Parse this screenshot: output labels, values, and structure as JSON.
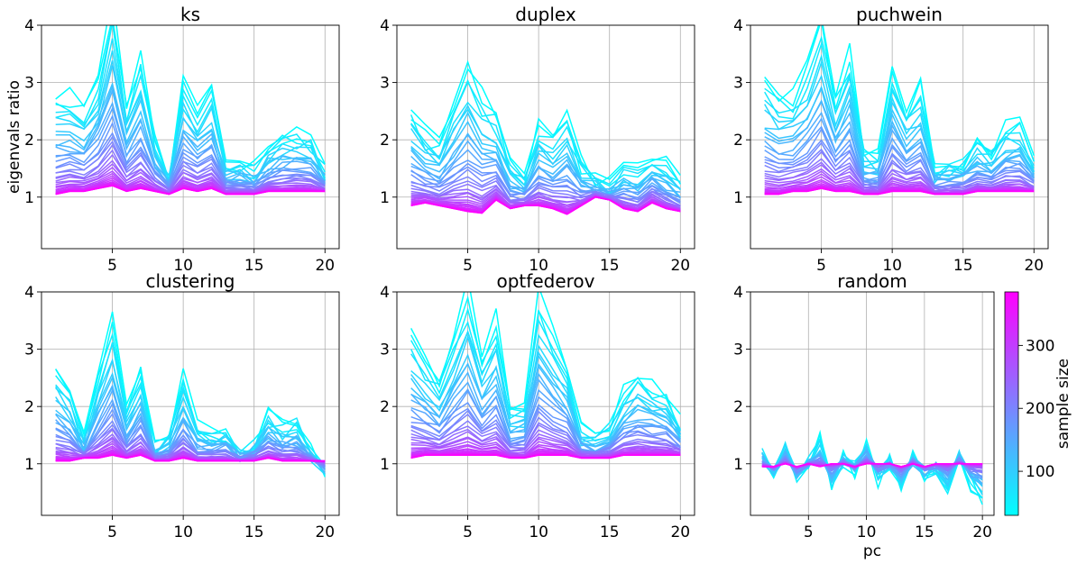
{
  "figure": {
    "colorbar": {
      "label": "sample size",
      "ticks": [
        "100",
        "200",
        "300"
      ],
      "range": [
        30,
        385
      ],
      "colormap": "cool (cyan to magenta)"
    },
    "colors": {
      "low": "#00ffff",
      "high": "#ff00ff",
      "grid": "#b0b0b0"
    }
  },
  "chart_data": [
    {
      "type": "line",
      "title": "ks",
      "xlabel": "",
      "ylabel": "eigenvals ratio",
      "xlim": [
        0,
        21
      ],
      "ylim": [
        0.1,
        4
      ],
      "xticks": [
        "5",
        "10",
        "15",
        "20"
      ],
      "yticks": [
        "1",
        "2",
        "3",
        "4"
      ],
      "grid": true,
      "x": [
        1,
        2,
        3,
        4,
        5,
        6,
        7,
        8,
        9,
        10,
        11,
        12,
        13,
        14,
        15,
        16,
        17,
        18,
        19,
        20
      ],
      "series_high_variance_small_sample": [
        2.8,
        2.8,
        2.6,
        3.2,
        4.5,
        2.6,
        3.5,
        2.1,
        1.4,
        3.1,
        2.6,
        3.0,
        1.6,
        1.6,
        1.5,
        1.9,
        2.1,
        2.2,
        2.1,
        1.5
      ],
      "series_converged_large_sample": [
        1.05,
        1.1,
        1.1,
        1.15,
        1.2,
        1.1,
        1.15,
        1.1,
        1.05,
        1.15,
        1.1,
        1.15,
        1.05,
        1.05,
        1.05,
        1.1,
        1.1,
        1.1,
        1.1,
        1.1
      ],
      "series_count_approx": 36
    },
    {
      "type": "line",
      "title": "duplex",
      "xlabel": "",
      "ylabel": "",
      "xlim": [
        0,
        21
      ],
      "ylim": [
        0.1,
        4
      ],
      "xticks": [
        "5",
        "10",
        "15",
        "20"
      ],
      "yticks": [
        "1",
        "2",
        "3",
        "4"
      ],
      "grid": true,
      "x": [
        1,
        2,
        3,
        4,
        5,
        6,
        7,
        8,
        9,
        10,
        11,
        12,
        13,
        14,
        15,
        16,
        17,
        18,
        19,
        20
      ],
      "series_high_variance_small_sample": [
        2.6,
        2.1,
        2.0,
        2.7,
        3.4,
        2.8,
        2.5,
        1.6,
        1.4,
        2.3,
        2.1,
        2.5,
        1.6,
        1.3,
        1.2,
        1.6,
        1.5,
        1.8,
        1.6,
        1.3
      ],
      "series_converged_large_sample": [
        0.85,
        0.9,
        0.85,
        0.8,
        0.75,
        0.72,
        0.95,
        0.8,
        0.85,
        0.85,
        0.8,
        0.7,
        0.85,
        1.0,
        0.95,
        0.8,
        0.75,
        0.9,
        0.8,
        0.75
      ],
      "series_count_approx": 36
    },
    {
      "type": "line",
      "title": "puchwein",
      "xlabel": "",
      "ylabel": "",
      "xlim": [
        0,
        21
      ],
      "ylim": [
        0.1,
        4
      ],
      "xticks": [
        "5",
        "10",
        "15",
        "20"
      ],
      "yticks": [
        "1",
        "2",
        "3",
        "4"
      ],
      "grid": true,
      "x": [
        1,
        2,
        3,
        4,
        5,
        6,
        7,
        8,
        9,
        10,
        11,
        12,
        13,
        14,
        15,
        16,
        17,
        18,
        19,
        20
      ],
      "series_high_variance_small_sample": [
        3.1,
        2.8,
        2.8,
        3.3,
        4.2,
        2.8,
        3.6,
        1.8,
        1.7,
        3.4,
        2.6,
        3.0,
        1.5,
        1.6,
        1.7,
        2.0,
        1.8,
        2.3,
        2.3,
        1.6
      ],
      "series_converged_large_sample": [
        1.05,
        1.05,
        1.1,
        1.1,
        1.15,
        1.1,
        1.1,
        1.05,
        1.05,
        1.1,
        1.1,
        1.1,
        1.05,
        1.05,
        1.05,
        1.1,
        1.1,
        1.1,
        1.1,
        1.1
      ],
      "series_count_approx": 36
    },
    {
      "type": "line",
      "title": "clustering",
      "xlabel": "",
      "ylabel": "",
      "xlim": [
        0,
        21
      ],
      "ylim": [
        0.1,
        4
      ],
      "xticks": [
        "5",
        "10",
        "15",
        "20"
      ],
      "yticks": [
        "1",
        "2",
        "3",
        "4"
      ],
      "grid": true,
      "x": [
        1,
        2,
        3,
        4,
        5,
        6,
        7,
        8,
        9,
        10,
        11,
        12,
        13,
        14,
        15,
        16,
        17,
        18,
        19,
        20
      ],
      "series_high_variance_small_sample": [
        2.7,
        2.3,
        1.4,
        2.6,
        3.6,
        1.9,
        2.7,
        1.3,
        1.5,
        2.5,
        1.6,
        1.5,
        1.6,
        1.2,
        1.4,
        1.9,
        1.7,
        1.8,
        1.2,
        0.8
      ],
      "series_converged_large_sample": [
        1.05,
        1.05,
        1.1,
        1.1,
        1.15,
        1.1,
        1.15,
        1.05,
        1.05,
        1.1,
        1.05,
        1.05,
        1.05,
        1.05,
        1.05,
        1.1,
        1.05,
        1.05,
        1.05,
        1.05
      ],
      "series_count_approx": 36
    },
    {
      "type": "line",
      "title": "optfederov",
      "xlabel": "",
      "ylabel": "",
      "xlim": [
        0,
        21
      ],
      "ylim": [
        0.1,
        4
      ],
      "xticks": [
        "5",
        "10",
        "15",
        "20"
      ],
      "yticks": [
        "1",
        "2",
        "3",
        "4"
      ],
      "grid": true,
      "x": [
        1,
        2,
        3,
        4,
        5,
        6,
        7,
        8,
        9,
        10,
        11,
        12,
        13,
        14,
        15,
        16,
        17,
        18,
        19,
        20
      ],
      "series_high_variance_small_sample": [
        3.4,
        2.9,
        2.5,
        3.3,
        4.1,
        2.9,
        3.6,
        2.0,
        2.0,
        4.0,
        3.3,
        2.8,
        1.6,
        1.5,
        1.7,
        2.3,
        2.6,
        2.4,
        2.3,
        1.7
      ],
      "series_converged_large_sample": [
        1.1,
        1.15,
        1.15,
        1.15,
        1.15,
        1.15,
        1.15,
        1.1,
        1.1,
        1.15,
        1.15,
        1.15,
        1.1,
        1.1,
        1.1,
        1.15,
        1.15,
        1.15,
        1.15,
        1.15
      ],
      "series_count_approx": 36
    },
    {
      "type": "line",
      "title": "random",
      "xlabel": "pc",
      "ylabel": "",
      "xlim": [
        0,
        21
      ],
      "ylim": [
        0.1,
        4
      ],
      "xticks": [
        "5",
        "10",
        "15",
        "20"
      ],
      "yticks": [
        "1",
        "2",
        "3",
        "4"
      ],
      "grid": true,
      "x": [
        1,
        2,
        3,
        4,
        5,
        6,
        7,
        8,
        9,
        10,
        11,
        12,
        13,
        14,
        15,
        16,
        17,
        18,
        19,
        20
      ],
      "series_high_variance_small_sample": [
        1.2,
        0.8,
        1.3,
        0.7,
        1.0,
        1.4,
        0.6,
        1.1,
        0.9,
        1.4,
        0.7,
        1.0,
        0.6,
        1.1,
        0.8,
        0.9,
        0.5,
        1.2,
        0.6,
        0.4
      ],
      "series_converged_large_sample": [
        0.95,
        0.95,
        1.0,
        0.95,
        1.0,
        0.95,
        1.0,
        1.0,
        0.95,
        1.0,
        1.0,
        1.0,
        0.95,
        1.0,
        0.95,
        1.0,
        1.0,
        1.0,
        1.0,
        1.0
      ],
      "series_count_approx": 36
    }
  ]
}
